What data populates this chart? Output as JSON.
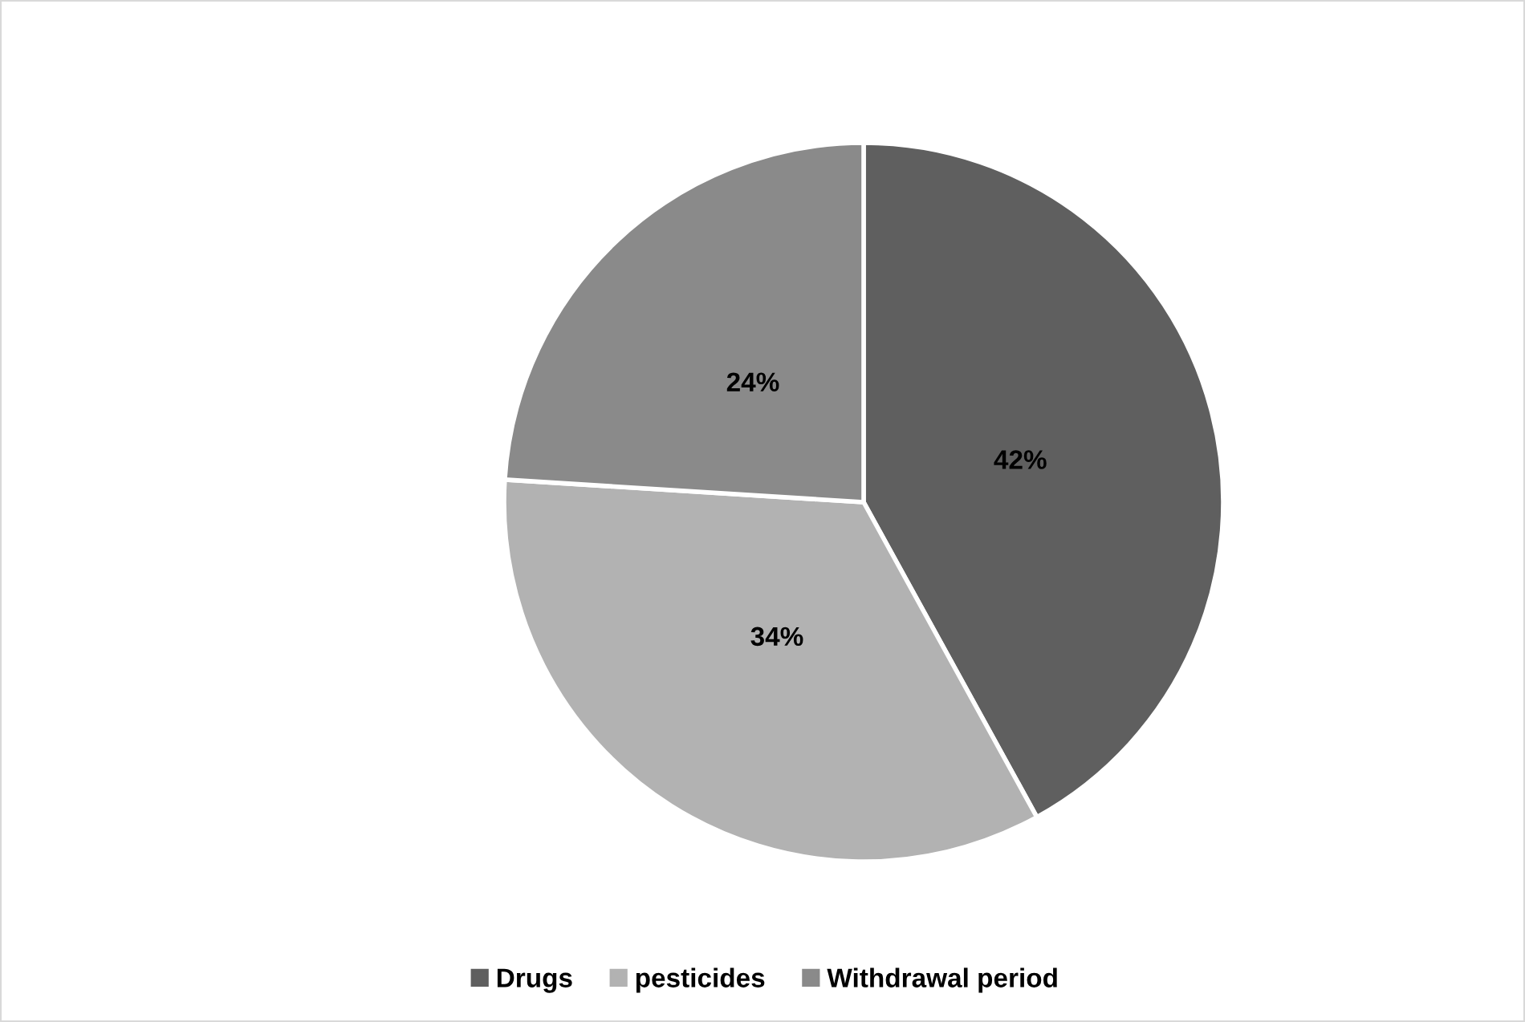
{
  "chart_data": {
    "type": "pie",
    "categories": [
      "Drugs",
      "pesticides",
      "Withdrawal period"
    ],
    "values": [
      42,
      34,
      24
    ],
    "colors": [
      "#5f5f5f",
      "#b2b2b2",
      "#8a8a8a"
    ],
    "value_labels": [
      "42%",
      "34%",
      "24%"
    ],
    "legend": "bottom"
  }
}
